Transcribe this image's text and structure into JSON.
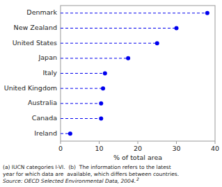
{
  "chart_data": {
    "type": "dot",
    "orientation": "horizontal",
    "categories": [
      "Denmark",
      "New Zealand",
      "United States",
      "Japan",
      "Italy",
      "United Kingdom",
      "Australia",
      "Canada",
      "Ireland"
    ],
    "values": [
      38.0,
      30.0,
      25.0,
      17.5,
      11.5,
      11.0,
      10.5,
      10.5,
      2.5
    ],
    "color": "#0000ee",
    "line_style": "dashed",
    "marker": "circle",
    "xlabel": "% of total area",
    "xlim": [
      0,
      40
    ],
    "xticks": [
      0,
      10,
      20,
      30,
      40
    ],
    "grid": false,
    "annotations": [
      "(a) IUCN categories I-VI.  (b)  The information refers to the latest",
      "year for which data are  available, which differs between countries.",
      "Source: OECD Selected Environmental Data, 2004.",
      "2"
    ]
  }
}
